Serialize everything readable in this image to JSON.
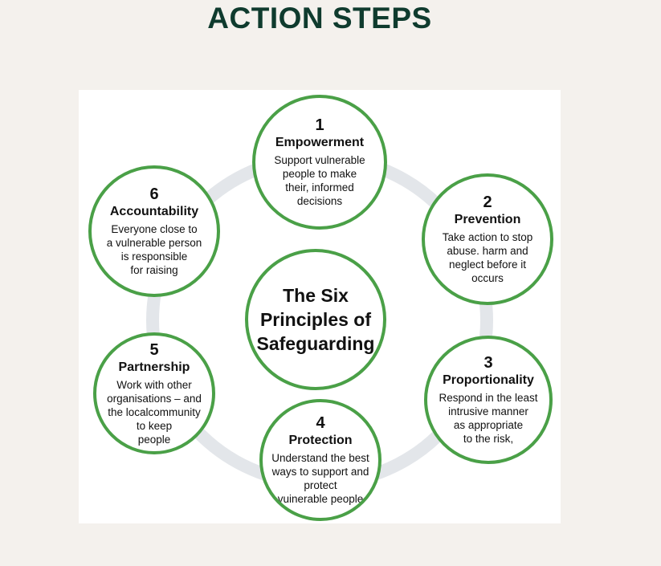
{
  "page": {
    "title": "ACTION STEPS"
  },
  "colors": {
    "background": "#f4f1ed",
    "title": "#0f3b2e",
    "ring": "#e3e6ea",
    "circle_border": "#4aa047"
  },
  "diagram": {
    "center": "The Six\nPrinciples of\nSafeguarding",
    "principles": [
      {
        "number": "1",
        "name": "Empowerment",
        "description": "Support vulnerable\npeople to make\ntheir, informed\ndecisions"
      },
      {
        "number": "2",
        "name": "Prevention",
        "description": "Take action to stop\nabuse. harm and\nneglect before it\noccurs"
      },
      {
        "number": "3",
        "name": "Proportionality",
        "description": "Respond in the least\nintrusive manner\nas appropriate\nto the risk,"
      },
      {
        "number": "4",
        "name": "Protection",
        "description": "Understand the best\nways to support and\nprotect\nvuinerable people"
      },
      {
        "number": "5",
        "name": "Partnership",
        "description": "Work with other\norganisations – and\nthe localcommunity\nto keep\npeople"
      },
      {
        "number": "6",
        "name": "Accountability",
        "description": "Everyone close to\na vulnerable person\nis responsible\nfor raising"
      }
    ]
  }
}
